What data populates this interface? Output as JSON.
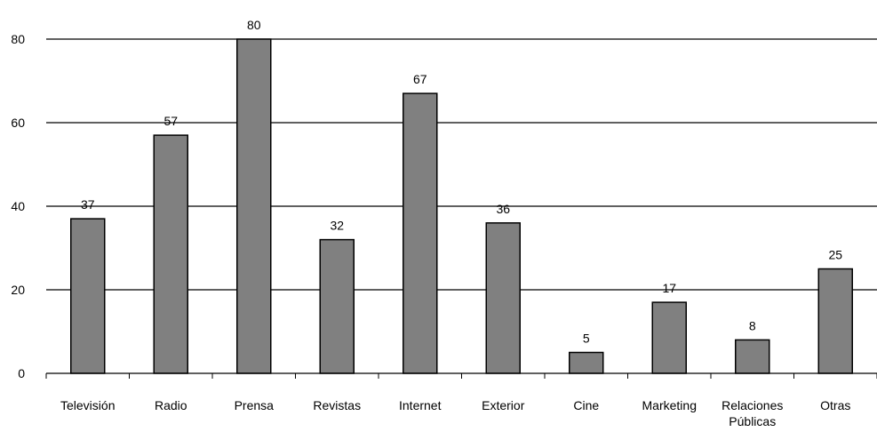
{
  "chart_data": {
    "type": "bar",
    "title": "",
    "xlabel": "",
    "ylabel": "",
    "categories": [
      "Televisión",
      "Radio",
      "Prensa",
      "Revistas",
      "Internet",
      "Exterior",
      "Cine",
      "Marketing",
      "Relaciones Públicas",
      "Otras"
    ],
    "values": [
      37,
      57,
      80,
      32,
      67,
      36,
      5,
      17,
      8,
      25
    ],
    "ylim": [
      0,
      80
    ],
    "yticks": [
      0,
      20,
      40,
      60,
      80
    ],
    "grid": true,
    "legend": "none",
    "data_labels": true,
    "colors": {
      "bar": "#808080",
      "bar_outline": "#000000",
      "grid": "#000000",
      "axis": "#000000"
    }
  }
}
